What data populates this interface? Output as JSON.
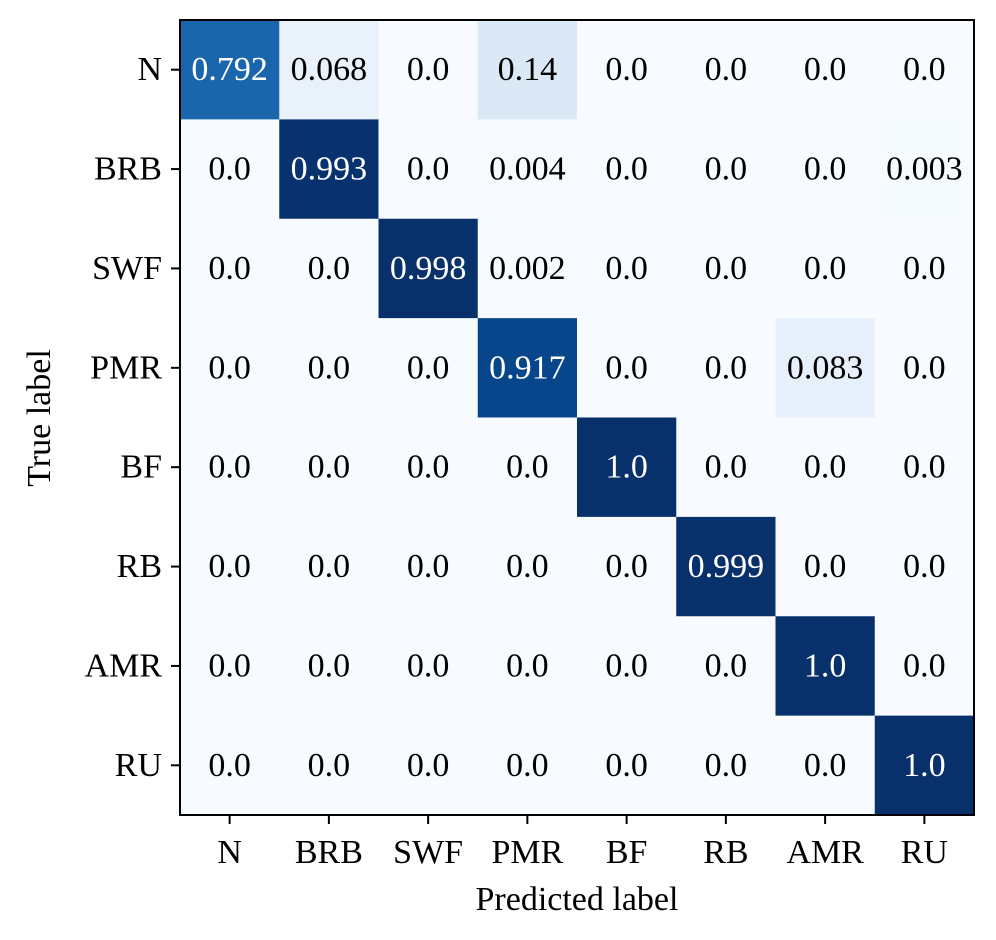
{
  "chart_data": {
    "type": "heatmap",
    "title": "",
    "xlabel": "Predicted label",
    "ylabel": "True label",
    "x_categories": [
      "N",
      "BRB",
      "SWF",
      "PMR",
      "BF",
      "RB",
      "AMR",
      "RU"
    ],
    "y_categories": [
      "N",
      "BRB",
      "SWF",
      "PMR",
      "BF",
      "RB",
      "AMR",
      "RU"
    ],
    "matrix": [
      [
        "0.792",
        "0.068",
        "0.0",
        "0.14",
        "0.0",
        "0.0",
        "0.0",
        "0.0"
      ],
      [
        "0.0",
        "0.993",
        "0.0",
        "0.004",
        "0.0",
        "0.0",
        "0.0",
        "0.003"
      ],
      [
        "0.0",
        "0.0",
        "0.998",
        "0.002",
        "0.0",
        "0.0",
        "0.0",
        "0.0"
      ],
      [
        "0.0",
        "0.0",
        "0.0",
        "0.917",
        "0.0",
        "0.0",
        "0.083",
        "0.0"
      ],
      [
        "0.0",
        "0.0",
        "0.0",
        "0.0",
        "1.0",
        "0.0",
        "0.0",
        "0.0"
      ],
      [
        "0.0",
        "0.0",
        "0.0",
        "0.0",
        "0.0",
        "0.999",
        "0.0",
        "0.0"
      ],
      [
        "0.0",
        "0.0",
        "0.0",
        "0.0",
        "0.0",
        "0.0",
        "1.0",
        "0.0"
      ],
      [
        "0.0",
        "0.0",
        "0.0",
        "0.0",
        "0.0",
        "0.0",
        "0.0",
        "1.0"
      ]
    ],
    "colormap": "Blues",
    "color_range": [
      0,
      1
    ],
    "colorbar": false,
    "grid": false,
    "legend": "none"
  }
}
